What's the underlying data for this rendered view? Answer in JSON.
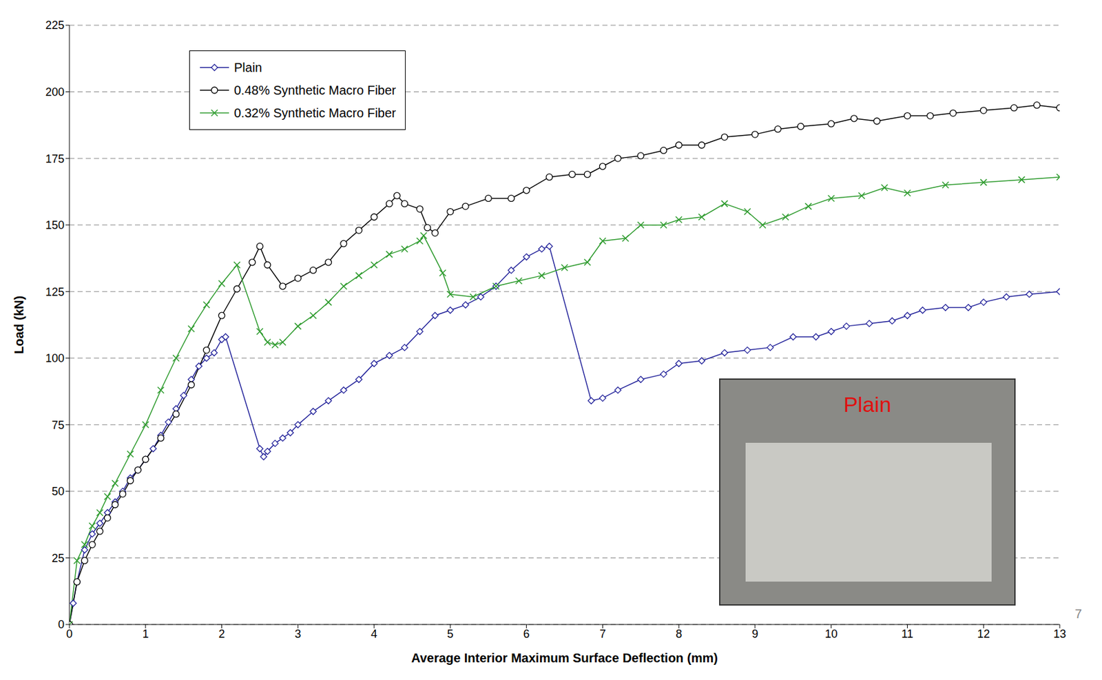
{
  "chart_data": {
    "type": "line",
    "x_label": "Average Interior Maximum Surface Deflection (mm)",
    "y_label": "Load (kN)",
    "xlim": [
      0,
      13
    ],
    "xticks": [
      0,
      1,
      2,
      3,
      4,
      5,
      6,
      7,
      8,
      9,
      10,
      11,
      12,
      13
    ],
    "ylim": [
      0,
      225
    ],
    "yticks": [
      0,
      25,
      50,
      75,
      100,
      125,
      150,
      175,
      200,
      225
    ],
    "grid": true,
    "legend": "upper left",
    "annotations": [
      "Plain",
      "7"
    ],
    "series": [
      {
        "name": "Plain",
        "color": "#22229a",
        "marker": "diamond",
        "x": [
          0,
          0.05,
          0.1,
          0.2,
          0.3,
          0.4,
          0.5,
          0.6,
          0.7,
          0.8,
          0.9,
          1.0,
          1.1,
          1.2,
          1.3,
          1.4,
          1.5,
          1.6,
          1.7,
          1.8,
          1.9,
          2.0,
          2.05,
          2.5,
          2.55,
          2.6,
          2.7,
          2.8,
          2.9,
          3.0,
          3.2,
          3.4,
          3.6,
          3.8,
          4.0,
          4.2,
          4.4,
          4.6,
          4.8,
          5.0,
          5.2,
          5.4,
          5.6,
          5.8,
          6.0,
          6.2,
          6.3,
          6.85,
          7.0,
          7.2,
          7.5,
          7.8,
          8.0,
          8.3,
          8.6,
          8.9,
          9.2,
          9.5,
          9.8,
          10.0,
          10.2,
          10.5,
          10.8,
          11.0,
          11.2,
          11.5,
          11.8,
          12.0,
          12.3,
          12.6,
          13.0
        ],
        "values": [
          0,
          8,
          16,
          28,
          34,
          38,
          42,
          46,
          50,
          55,
          58,
          62,
          66,
          71,
          76,
          81,
          86,
          92,
          97,
          100,
          102,
          107,
          108,
          66,
          63,
          65,
          68,
          70,
          72,
          75,
          80,
          84,
          88,
          92,
          98,
          101,
          104,
          110,
          116,
          118,
          120,
          123,
          127,
          133,
          138,
          141,
          142,
          84,
          85,
          88,
          92,
          94,
          98,
          99,
          102,
          103,
          104,
          108,
          108,
          110,
          112,
          113,
          114,
          116,
          118,
          119,
          119,
          121,
          123,
          124,
          125
        ]
      },
      {
        "name": "0.48% Synthetic Macro Fiber",
        "color": "#000000",
        "marker": "circle",
        "x": [
          0,
          0.1,
          0.2,
          0.3,
          0.4,
          0.5,
          0.6,
          0.7,
          0.8,
          0.9,
          1.0,
          1.2,
          1.4,
          1.6,
          1.8,
          2.0,
          2.2,
          2.4,
          2.5,
          2.6,
          2.8,
          3.0,
          3.2,
          3.4,
          3.6,
          3.8,
          4.0,
          4.2,
          4.3,
          4.4,
          4.6,
          4.7,
          4.8,
          5.0,
          5.2,
          5.5,
          5.8,
          6.0,
          6.3,
          6.6,
          6.8,
          7.0,
          7.2,
          7.5,
          7.8,
          8.0,
          8.3,
          8.6,
          9.0,
          9.3,
          9.6,
          10.0,
          10.3,
          10.6,
          11.0,
          11.3,
          11.6,
          12.0,
          12.4,
          12.7,
          13.0
        ],
        "values": [
          0,
          16,
          24,
          30,
          35,
          40,
          45,
          49,
          54,
          58,
          62,
          70,
          79,
          90,
          103,
          116,
          126,
          136,
          142,
          135,
          127,
          130,
          133,
          136,
          143,
          148,
          153,
          158,
          161,
          158,
          156,
          149,
          147,
          155,
          157,
          160,
          160,
          163,
          168,
          169,
          169,
          172,
          175,
          176,
          178,
          180,
          180,
          183,
          184,
          186,
          187,
          188,
          190,
          189,
          191,
          191,
          192,
          193,
          194,
          195,
          194
        ]
      },
      {
        "name": "0.32% Synthetic Macro Fiber",
        "color": "#2e9b2e",
        "marker": "x",
        "x": [
          0,
          0.1,
          0.2,
          0.3,
          0.4,
          0.5,
          0.6,
          0.8,
          1.0,
          1.2,
          1.4,
          1.6,
          1.8,
          2.0,
          2.2,
          2.5,
          2.6,
          2.7,
          2.8,
          3.0,
          3.2,
          3.4,
          3.6,
          3.8,
          4.0,
          4.2,
          4.4,
          4.6,
          4.65,
          4.9,
          5.0,
          5.3,
          5.6,
          5.9,
          6.2,
          6.5,
          6.8,
          7.0,
          7.3,
          7.5,
          7.8,
          8.0,
          8.3,
          8.6,
          8.9,
          9.1,
          9.4,
          9.7,
          10.0,
          10.4,
          10.7,
          11.0,
          11.5,
          12.0,
          12.5,
          13.0
        ],
        "values": [
          0,
          24,
          30,
          37,
          42,
          48,
          53,
          64,
          75,
          88,
          100,
          111,
          120,
          128,
          135,
          110,
          106,
          105,
          106,
          112,
          116,
          121,
          127,
          131,
          135,
          139,
          141,
          144,
          146,
          132,
          124,
          123,
          127,
          129,
          131,
          134,
          136,
          144,
          145,
          150,
          150,
          152,
          153,
          158,
          155,
          150,
          153,
          157,
          160,
          161,
          164,
          162,
          165,
          166,
          167,
          168
        ]
      }
    ]
  }
}
